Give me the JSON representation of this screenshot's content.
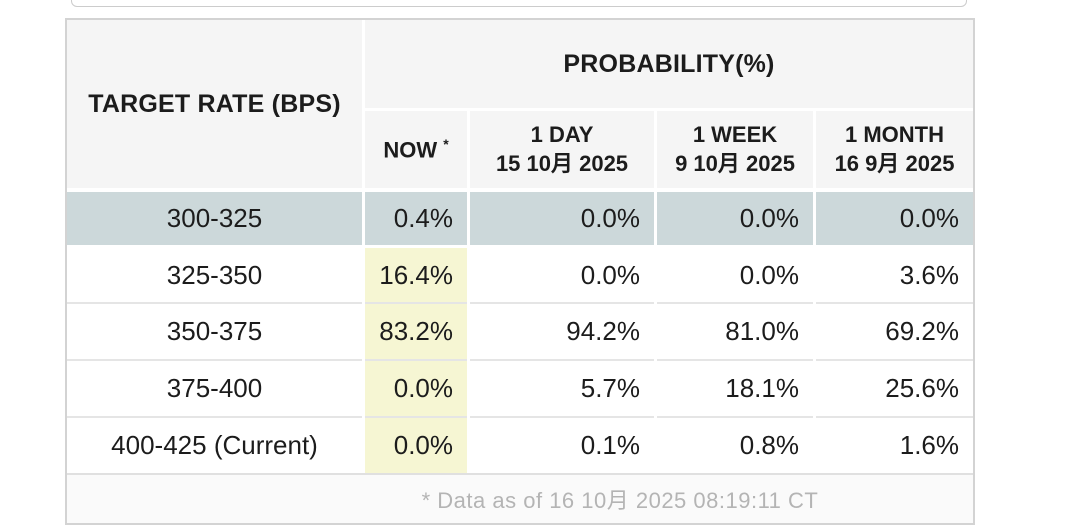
{
  "page": {
    "background": "#ffffff"
  },
  "table": {
    "corner_header": "TARGET RATE (BPS)",
    "probability_header": "PROBABILITY(%)",
    "columns": [
      {
        "label": "NOW",
        "sup": "*"
      },
      {
        "label": "1 DAY",
        "date": "15 10月 2025"
      },
      {
        "label": "1 WEEK",
        "date": "9 10月 2025"
      },
      {
        "label": "1 MONTH",
        "date": "16 9月 2025"
      }
    ],
    "rows": [
      {
        "target": "300-325",
        "now": "0.4%",
        "one_day": "0.0%",
        "one_week": "0.0%",
        "one_month": "0.0%"
      },
      {
        "target": "325-350",
        "now": "16.4%",
        "one_day": "0.0%",
        "one_week": "0.0%",
        "one_month": "3.6%"
      },
      {
        "target": "350-375",
        "now": "83.2%",
        "one_day": "94.2%",
        "one_week": "81.0%",
        "one_month": "69.2%"
      },
      {
        "target": "375-400",
        "now": "0.0%",
        "one_day": "5.7%",
        "one_week": "18.1%",
        "one_month": "25.6%"
      },
      {
        "target": "400-425 (Current)",
        "now": "0.0%",
        "one_day": "0.1%",
        "one_week": "0.8%",
        "one_month": "1.6%"
      }
    ],
    "highlighted_row": "300-325",
    "footnote": "* Data as of 16 10月 2025 08:19:11 CT",
    "colors": {
      "row_highlight": "#ccd8da",
      "now_column_highlight": "#f6f6d3",
      "header_bg": "#f5f5f5",
      "footer_bg": "#fafafa",
      "footer_text": "#b4b4b4",
      "border": "#d3d3d3"
    }
  },
  "chart_data": {
    "type": "table",
    "title": "PROBABILITY(%)",
    "columns": [
      "TARGET RATE (BPS)",
      "NOW *",
      "1 DAY 15 10月 2025",
      "1 WEEK 9 10月 2025",
      "1 MONTH 16 9月 2025"
    ],
    "rows": [
      [
        "300-325",
        0.4,
        0.0,
        0.0,
        0.0
      ],
      [
        "325-350",
        16.4,
        0.0,
        0.0,
        3.6
      ],
      [
        "350-375",
        83.2,
        94.2,
        81.0,
        69.2
      ],
      [
        "375-400",
        0.0,
        5.7,
        18.1,
        25.6
      ],
      [
        "400-425 (Current)",
        0.0,
        0.1,
        0.8,
        1.6
      ]
    ],
    "units": "%",
    "annotations": [
      "* Data as of 16 10月 2025 08:19:11 CT"
    ]
  }
}
